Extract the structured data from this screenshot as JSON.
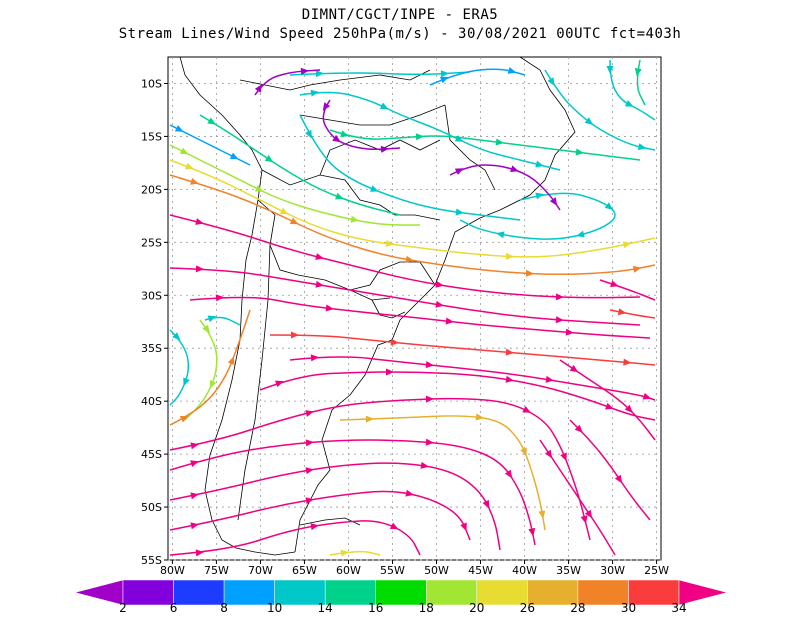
{
  "title": {
    "line1": "DIMNT/CGCT/INPE  -  ERA5",
    "line2": "Stream Lines/Wind Speed 250hPa(m/s) -  30/08/2021 00UTC fct=403h"
  },
  "map": {
    "lat_labels": [
      "10S",
      "15S",
      "20S",
      "25S",
      "30S",
      "35S",
      "40S",
      "45S",
      "50S",
      "55S"
    ],
    "lat_values": [
      -10,
      -15,
      -20,
      -25,
      -30,
      -35,
      -40,
      -45,
      -50,
      -55
    ],
    "lon_labels": [
      "80W",
      "75W",
      "70W",
      "65W",
      "60W",
      "55W",
      "50W",
      "45W",
      "40W",
      "35W",
      "30W",
      "25W"
    ],
    "lon_values": [
      -80,
      -75,
      -70,
      -65,
      -60,
      -55,
      -50,
      -45,
      -40,
      -35,
      -30,
      -25
    ],
    "lon_range": [
      -80.5,
      -24.5
    ],
    "lat_range": [
      -55,
      -7.5
    ],
    "grid": true
  },
  "colorbar": {
    "labels": [
      "2",
      "6",
      "8",
      "10",
      "14",
      "16",
      "18",
      "20",
      "26",
      "28",
      "30",
      "34"
    ],
    "colors": [
      "#a000c8",
      "#8200dc",
      "#1e3cff",
      "#00a0ff",
      "#00c8c8",
      "#00d28c",
      "#00dc00",
      "#a0e632",
      "#e6dc32",
      "#e6af2d",
      "#f08228",
      "#fa3c3c",
      "#f00082"
    ]
  },
  "chart_data": {
    "type": "streamline",
    "title": "Stream Lines/Wind Speed 250hPa(m/s)",
    "units": "m/s",
    "levels": [
      2,
      6,
      8,
      10,
      14,
      16,
      18,
      20,
      26,
      28,
      30,
      34
    ]
  }
}
